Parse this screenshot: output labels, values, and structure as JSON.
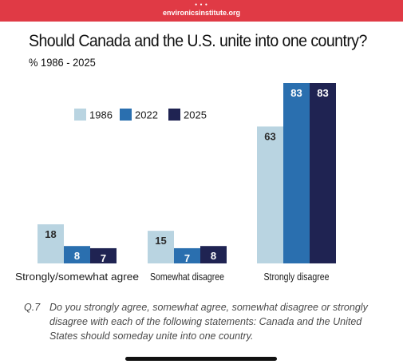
{
  "browser": {
    "url": "environicsinstitute.org"
  },
  "chart_data": {
    "type": "bar",
    "title": "Should Canada and the U.S. unite into one country?",
    "subtitle": "%  1986 - 2025",
    "categories": [
      "Strongly/somewhat agree",
      "Somewhat disagree",
      "Strongly disagree"
    ],
    "series": [
      {
        "name": "1986",
        "values": [
          18,
          15,
          63
        ],
        "color": "#b9d4e1"
      },
      {
        "name": "2022",
        "values": [
          8,
          7,
          83
        ],
        "color": "#2a6faf"
      },
      {
        "name": "2025",
        "values": [
          7,
          8,
          83
        ],
        "color": "#1f2352"
      }
    ],
    "ylim": [
      0,
      83
    ],
    "grid": false,
    "legend": "upper-left"
  },
  "question": {
    "number": "Q.7",
    "text": "Do you strongly agree, somewhat agree, somewhat disagree or strongly disagree with each of the following statements:  Canada and the United States should someday unite into one country."
  }
}
